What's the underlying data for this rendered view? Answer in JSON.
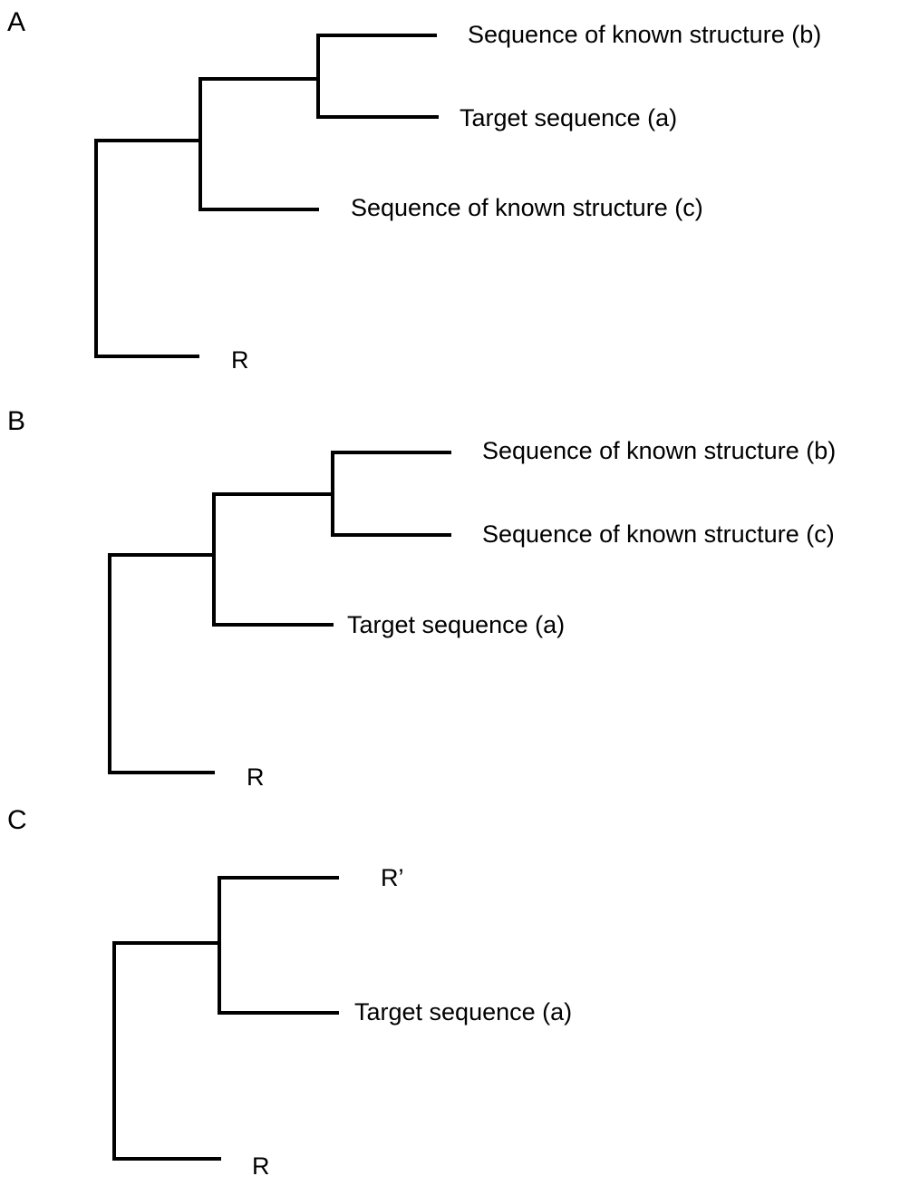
{
  "panels": {
    "a": {
      "letter": "A",
      "leaves": {
        "b": "Sequence of known structure (b)",
        "a": "Target sequence (a)",
        "c": "Sequence of known structure (c)",
        "r": "R"
      }
    },
    "b": {
      "letter": "B",
      "leaves": {
        "b": "Sequence of known structure (b)",
        "c": "Sequence of known structure (c)",
        "a": "Target sequence (a)",
        "r": "R"
      }
    },
    "c": {
      "letter": "C",
      "leaves": {
        "rprime": "R’",
        "a": "Target sequence (a)",
        "r": "R"
      }
    }
  },
  "colors": {
    "line": "#000000",
    "text": "#000000",
    "background": "#ffffff"
  }
}
